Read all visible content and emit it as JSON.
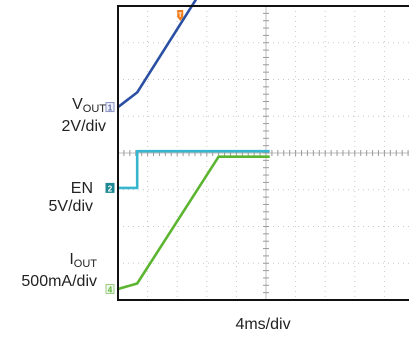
{
  "chart_data": {
    "type": "line",
    "title": "",
    "xlabel": "4ms/div",
    "time_per_div_ms": 4,
    "x_divisions": 10,
    "y_divisions": 8,
    "grid": true,
    "channels": [
      {
        "id": "1",
        "label_main": "V",
        "label_sub": "OUT",
        "scale": "2V/div",
        "color": "#2a4fa3",
        "x_ms": [
          0,
          2.6,
          13.6,
          20.5
        ],
        "values_div": [
          1.25,
          1.65,
          5.15,
          5.15
        ]
      },
      {
        "id": "2",
        "label_main": "EN",
        "label_sub": "",
        "scale": "5V/div",
        "color": "#39b6cf",
        "x_ms": [
          0,
          2.6,
          2.6,
          20.5
        ],
        "values_div": [
          -0.95,
          -0.95,
          0.05,
          0.05
        ]
      },
      {
        "id": "4",
        "label_main": "I",
        "label_sub": "OUT",
        "scale": "500mA/div",
        "color": "#5cb531",
        "x_ms": [
          0,
          2.6,
          13.6,
          20.5
        ],
        "values_div": [
          -3.7,
          -3.55,
          -0.1,
          -0.1
        ]
      }
    ],
    "markers": [
      {
        "name": "trigger-marker",
        "label": "T",
        "color": "#f07c1e"
      }
    ]
  }
}
